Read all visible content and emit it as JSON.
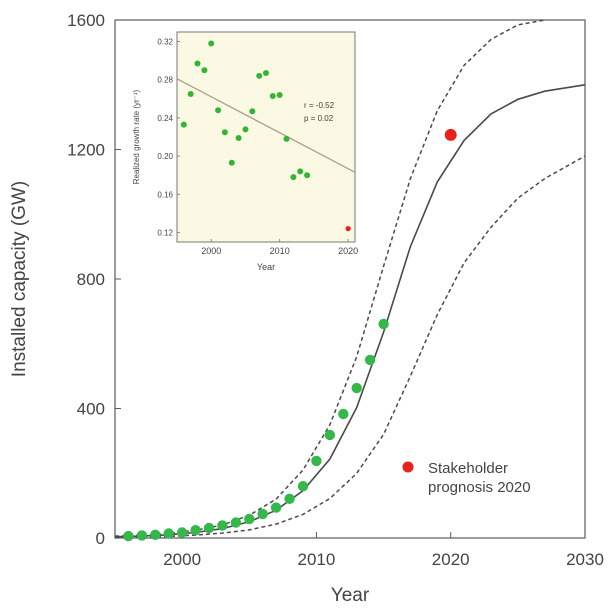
{
  "chart_data": [
    {
      "id": "main",
      "type": "line",
      "xlabel": "Year",
      "ylabel": "Installed capacity (GW)",
      "xlim": [
        1995,
        2030
      ],
      "ylim": [
        0,
        1600
      ],
      "xticks": [
        "2000",
        "2010",
        "2020",
        "2030"
      ],
      "yticks": [
        "0",
        "400",
        "800",
        "1200",
        "1600"
      ],
      "grid": false,
      "observed": {
        "x": [
          1996,
          1997,
          1998,
          1999,
          2000,
          2001,
          2002,
          2003,
          2004,
          2005,
          2006,
          2007,
          2008,
          2009,
          2010,
          2011,
          2012,
          2013,
          2014,
          2015
        ],
        "y": [
          6,
          8,
          10,
          14,
          17,
          24,
          31,
          39,
          48,
          59,
          74,
          94,
          121,
          160,
          238,
          318,
          383,
          463,
          550,
          661
        ]
      },
      "fit_curve": {
        "x": [
          1995,
          1997,
          1999,
          2001,
          2003,
          2005,
          2007,
          2009,
          2011,
          2013,
          2015,
          2017,
          2019,
          2021,
          2023,
          2025,
          2027,
          2030
        ],
        "y": [
          4,
          6,
          10,
          17,
          29,
          50,
          86,
          146,
          244,
          403,
          636,
          900,
          1100,
          1228,
          1310,
          1355,
          1380,
          1400
        ]
      },
      "upper_bound": {
        "x": [
          1995,
          1997,
          1999,
          2001,
          2003,
          2005,
          2007,
          2009,
          2011,
          2013,
          2015,
          2017,
          2019,
          2021,
          2023,
          2025,
          2027
        ],
        "y": [
          6,
          9,
          14,
          24,
          40,
          70,
          120,
          210,
          350,
          560,
          840,
          1110,
          1320,
          1460,
          1540,
          1585,
          1600
        ]
      },
      "lower_bound": {
        "x": [
          1995,
          1997,
          1999,
          2001,
          2003,
          2005,
          2007,
          2009,
          2011,
          2013,
          2015,
          2017,
          2019,
          2021,
          2023,
          2025,
          2027,
          2030
        ],
        "y": [
          2,
          3,
          5,
          9,
          15,
          25,
          43,
          73,
          122,
          200,
          320,
          500,
          690,
          850,
          960,
          1050,
          1110,
          1180
        ]
      },
      "stakeholder_point": {
        "x": 2020,
        "y": 1245
      },
      "legend": {
        "label": "Stakeholder\nprognosis 2020",
        "position": "lower-right"
      }
    },
    {
      "id": "inset",
      "type": "scatter",
      "xlabel": "Year",
      "ylabel": "Realized growth rate (yr⁻¹)",
      "xlim": [
        1995,
        2021
      ],
      "ylim": [
        0.11,
        0.33
      ],
      "xticks": [
        "2000",
        "2010",
        "2020"
      ],
      "yticks": [
        "0.12",
        "0.16",
        "0.20",
        "0.24",
        "0.28",
        "0.32"
      ],
      "background": "#fbf8e4",
      "points": {
        "x": [
          1996,
          1997,
          1998,
          1999,
          2000,
          2001,
          2002,
          2003,
          2004,
          2005,
          2006,
          2007,
          2008,
          2009,
          2010,
          2011,
          2012,
          2013,
          2014
        ],
        "y": [
          0.233,
          0.265,
          0.297,
          0.29,
          0.318,
          0.248,
          0.225,
          0.193,
          0.219,
          0.228,
          0.247,
          0.284,
          0.287,
          0.263,
          0.264,
          0.218,
          0.178,
          0.184,
          0.18
        ]
      },
      "highlight_point": {
        "x": 2020,
        "y": 0.124
      },
      "trend_line": {
        "x": [
          1995,
          2021
        ],
        "y": [
          0.281,
          0.183
        ]
      },
      "annotation": [
        "r = -0.52",
        "p = 0.02"
      ]
    }
  ],
  "colors": {
    "main_points": "#35b84a",
    "inset_points": "#33b534",
    "highlight": "#e8221b",
    "fit_line": "#4a4a4a",
    "bounds": "#4a4a4a",
    "trend": "#a8a18a",
    "axis_text": "#444444"
  }
}
